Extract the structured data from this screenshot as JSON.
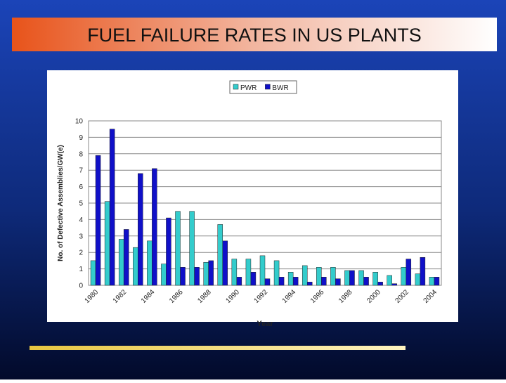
{
  "chart_data": {
    "type": "bar",
    "title": "FUEL FAILURE RATES IN US PLANTS",
    "y_label": "No. of Defective Assemblies/GW(e)",
    "x_label": "Year",
    "categories": [
      "1980",
      null,
      "1982",
      null,
      "1984",
      null,
      "1986",
      null,
      "1988",
      null,
      "1990",
      null,
      "1992",
      null,
      "1994",
      null,
      "1996",
      null,
      "1998",
      null,
      "2000",
      null,
      "2002",
      null,
      "2004"
    ],
    "series": [
      {
        "name": "PWR",
        "color": "#33cccc",
        "values": [
          1.5,
          5.1,
          2.8,
          2.3,
          2.7,
          1.3,
          4.5,
          4.5,
          1.4,
          3.7,
          1.6,
          1.6,
          1.8,
          1.5,
          0.8,
          1.2,
          1.1,
          1.1,
          0.9,
          0.9,
          0.8,
          0.6,
          1.1,
          0.7,
          0.5
        ]
      },
      {
        "name": "BWR",
        "color": "#1010c8",
        "values": [
          7.9,
          9.5,
          3.4,
          6.8,
          7.1,
          4.1,
          1.1,
          1.1,
          1.5,
          2.7,
          0.5,
          0.8,
          0.4,
          0.5,
          0.5,
          0.2,
          0.5,
          0.4,
          0.9,
          0.5,
          0.2,
          0.1,
          1.6,
          1.7,
          0.5
        ]
      }
    ],
    "ylim": [
      0,
      10
    ],
    "yticks": [
      0,
      1,
      2,
      3,
      4,
      5,
      6,
      7,
      8,
      9,
      10
    ],
    "grid": true,
    "legend": "top"
  }
}
